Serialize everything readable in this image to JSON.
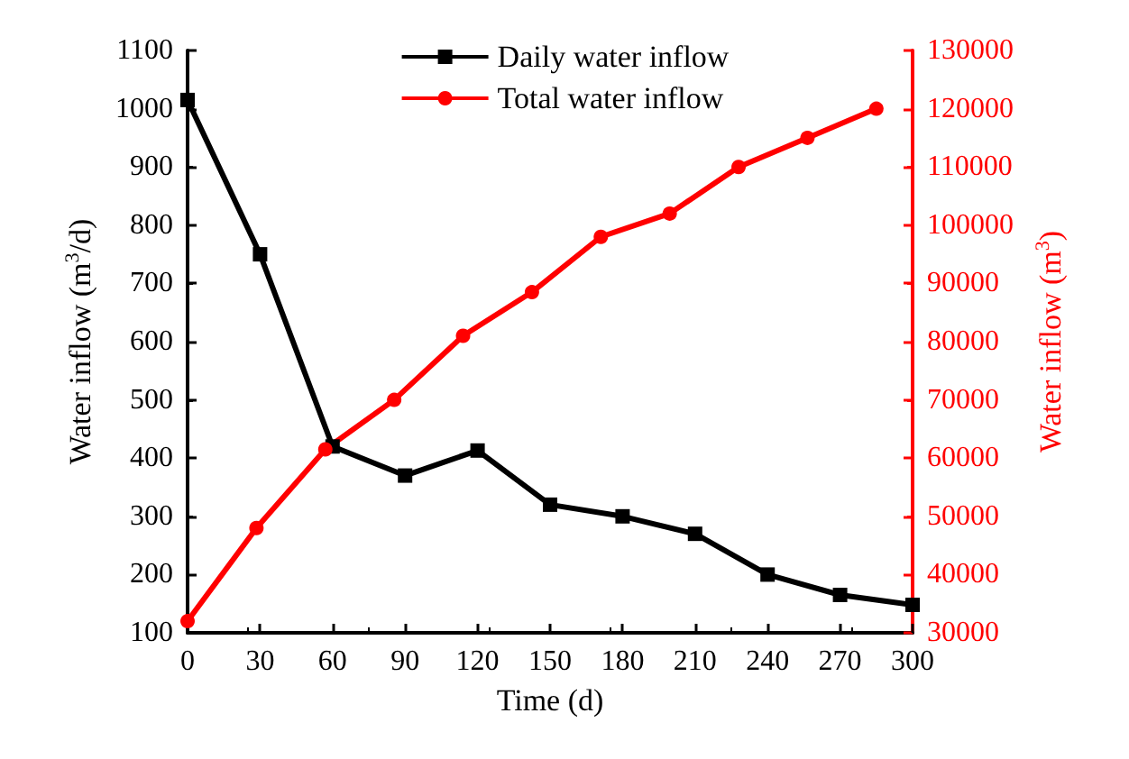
{
  "chart_data": {
    "type": "line",
    "xlabel": "Time (d)",
    "ylabel": "Water inflow (m$^{3}$/d)",
    "y2label": "Water inflow (m$^{3}$)",
    "xlim": [
      0,
      300
    ],
    "xticks": [
      0,
      30,
      60,
      90,
      120,
      150,
      180,
      210,
      240,
      270,
      300
    ],
    "ylim": [
      100,
      1100
    ],
    "yticks": [
      100,
      200,
      300,
      400,
      500,
      600,
      700,
      800,
      900,
      1000,
      1100
    ],
    "y2lim": [
      30000,
      130000
    ],
    "y2ticks": [
      30000,
      40000,
      50000,
      60000,
      70000,
      80000,
      90000,
      100000,
      110000,
      120000,
      130000
    ],
    "grid": false,
    "legend": "top",
    "line_style": "solid",
    "series": [
      {
        "name": "Daily water inflow",
        "color": "#000000",
        "marker": "square",
        "x": [
          0,
          30,
          60,
          90,
          120,
          150,
          180,
          210,
          240,
          270,
          300
        ],
        "values": [
          1015,
          750,
          420,
          370,
          413,
          320,
          300,
          270,
          200,
          165,
          148
        ]
      },
      {
        "name": "Total water inflow",
        "color": "#ff0000",
        "marker": "circle",
        "axis": "y2",
        "x": [
          0,
          28.5,
          57,
          85.5,
          114,
          142.5,
          171,
          199.5,
          228,
          256.5,
          285
        ],
        "values": [
          32000,
          48000,
          61500,
          70000,
          81000,
          88500,
          98000,
          102000,
          110000,
          115000,
          120000
        ]
      }
    ]
  }
}
